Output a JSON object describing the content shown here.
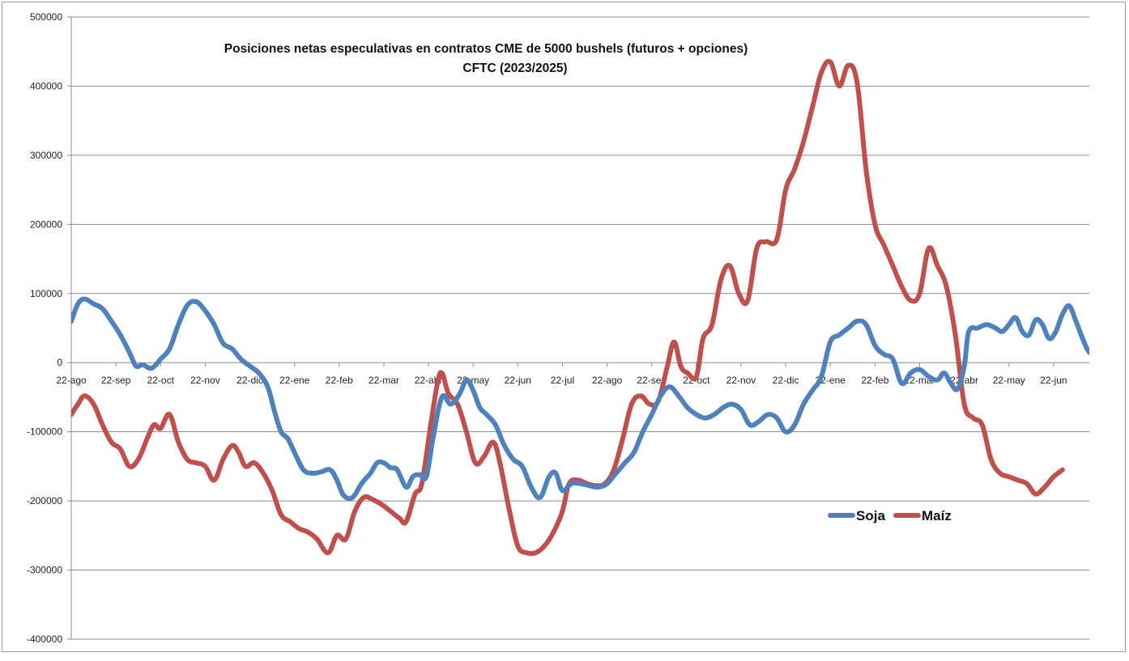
{
  "chart_data": {
    "type": "line",
    "title": "Posiciones netas especulativas en contratos CME de 5000 bushels (futuros + opciones)",
    "subtitle": "CFTC (2023/2025)",
    "xlabel": "",
    "ylabel": "",
    "ylim": [
      -400000,
      500000
    ],
    "y_ticks": [
      "500000",
      "400000",
      "300000",
      "200000",
      "100000",
      "0",
      "-100000",
      "-200000",
      "-300000",
      "-400000"
    ],
    "y_tick_values": [
      500000,
      400000,
      300000,
      200000,
      100000,
      0,
      -100000,
      -200000,
      -300000,
      -400000
    ],
    "x_tick_labels": [
      "22-ago",
      "22-sep",
      "22-oct",
      "22-nov",
      "22-dic",
      "22-ene",
      "22-feb",
      "22-mar",
      "22-abr",
      "22-may",
      "22-jun",
      "22-jul",
      "22-ago",
      "22-sep",
      "22-oct",
      "22-nov",
      "22-dic",
      "22-ene",
      "22-feb",
      "22-mar",
      "22-abr",
      "22-may",
      "22-jun"
    ],
    "x_range_months": [
      0,
      22.8
    ],
    "grid": "horizontal",
    "legend_position": "bottom-right",
    "series": [
      {
        "name": "Soja",
        "color": "#4F81BD",
        "points": [
          [
            0.0,
            60000
          ],
          [
            0.15,
            85000
          ],
          [
            0.3,
            92000
          ],
          [
            0.5,
            85000
          ],
          [
            0.7,
            78000
          ],
          [
            0.9,
            60000
          ],
          [
            1.1,
            40000
          ],
          [
            1.3,
            15000
          ],
          [
            1.45,
            -5000
          ],
          [
            1.6,
            -3000
          ],
          [
            1.8,
            -8000
          ],
          [
            2.0,
            5000
          ],
          [
            2.2,
            20000
          ],
          [
            2.4,
            55000
          ],
          [
            2.6,
            83000
          ],
          [
            2.8,
            88000
          ],
          [
            3.0,
            75000
          ],
          [
            3.2,
            55000
          ],
          [
            3.4,
            28000
          ],
          [
            3.6,
            20000
          ],
          [
            3.8,
            5000
          ],
          [
            4.0,
            -5000
          ],
          [
            4.2,
            -15000
          ],
          [
            4.4,
            -35000
          ],
          [
            4.55,
            -70000
          ],
          [
            4.7,
            -100000
          ],
          [
            4.85,
            -110000
          ],
          [
            5.0,
            -130000
          ],
          [
            5.2,
            -155000
          ],
          [
            5.4,
            -160000
          ],
          [
            5.6,
            -158000
          ],
          [
            5.8,
            -155000
          ],
          [
            5.95,
            -170000
          ],
          [
            6.1,
            -192000
          ],
          [
            6.3,
            -195000
          ],
          [
            6.5,
            -175000
          ],
          [
            6.7,
            -160000
          ],
          [
            6.85,
            -145000
          ],
          [
            7.0,
            -145000
          ],
          [
            7.15,
            -152000
          ],
          [
            7.3,
            -155000
          ],
          [
            7.5,
            -180000
          ],
          [
            7.65,
            -165000
          ],
          [
            7.8,
            -162000
          ],
          [
            7.95,
            -165000
          ],
          [
            8.1,
            -110000
          ],
          [
            8.3,
            -50000
          ],
          [
            8.5,
            -60000
          ],
          [
            8.7,
            -45000
          ],
          [
            8.85,
            -25000
          ],
          [
            9.0,
            -40000
          ],
          [
            9.15,
            -65000
          ],
          [
            9.3,
            -75000
          ],
          [
            9.5,
            -90000
          ],
          [
            9.7,
            -120000
          ],
          [
            9.9,
            -140000
          ],
          [
            10.1,
            -150000
          ],
          [
            10.3,
            -180000
          ],
          [
            10.5,
            -195000
          ],
          [
            10.7,
            -165000
          ],
          [
            10.85,
            -160000
          ],
          [
            11.0,
            -185000
          ],
          [
            11.2,
            -175000
          ],
          [
            11.4,
            -175000
          ],
          [
            11.6,
            -178000
          ],
          [
            11.8,
            -180000
          ],
          [
            12.0,
            -175000
          ],
          [
            12.2,
            -160000
          ],
          [
            12.4,
            -145000
          ],
          [
            12.6,
            -130000
          ],
          [
            12.8,
            -100000
          ],
          [
            13.0,
            -75000
          ],
          [
            13.2,
            -48000
          ],
          [
            13.4,
            -35000
          ],
          [
            13.6,
            -48000
          ],
          [
            13.8,
            -65000
          ],
          [
            14.0,
            -75000
          ],
          [
            14.2,
            -80000
          ],
          [
            14.4,
            -75000
          ],
          [
            14.6,
            -65000
          ],
          [
            14.8,
            -60000
          ],
          [
            15.0,
            -68000
          ],
          [
            15.2,
            -90000
          ],
          [
            15.4,
            -85000
          ],
          [
            15.6,
            -75000
          ],
          [
            15.8,
            -80000
          ],
          [
            16.0,
            -100000
          ],
          [
            16.2,
            -90000
          ],
          [
            16.4,
            -60000
          ],
          [
            16.6,
            -40000
          ],
          [
            16.8,
            -20000
          ],
          [
            17.0,
            30000
          ],
          [
            17.2,
            40000
          ],
          [
            17.4,
            50000
          ],
          [
            17.6,
            60000
          ],
          [
            17.8,
            55000
          ],
          [
            18.0,
            25000
          ],
          [
            18.2,
            12000
          ],
          [
            18.4,
            5000
          ],
          [
            18.6,
            -30000
          ],
          [
            18.8,
            -15000
          ],
          [
            19.0,
            -10000
          ],
          [
            19.2,
            -20000
          ],
          [
            19.4,
            -25000
          ],
          [
            19.55,
            -15000
          ],
          [
            19.7,
            -30000
          ],
          [
            19.85,
            -38000
          ],
          [
            20.0,
            -5000
          ],
          [
            20.1,
            45000
          ],
          [
            20.3,
            50000
          ],
          [
            20.5,
            55000
          ],
          [
            20.7,
            50000
          ],
          [
            20.85,
            45000
          ],
          [
            21.0,
            55000
          ],
          [
            21.15,
            65000
          ],
          [
            21.3,
            45000
          ],
          [
            21.45,
            40000
          ],
          [
            21.6,
            62000
          ],
          [
            21.75,
            55000
          ],
          [
            21.9,
            35000
          ],
          [
            22.05,
            45000
          ],
          [
            22.2,
            70000
          ],
          [
            22.35,
            82000
          ],
          [
            22.5,
            60000
          ],
          [
            22.65,
            35000
          ],
          [
            22.8,
            15000
          ],
          [
            23.0,
            12000
          ],
          [
            23.2,
            -5000
          ],
          [
            23.3,
            -20000
          ]
        ]
      },
      {
        "name": "Maíz",
        "color": "#C0504D",
        "points": [
          [
            0.0,
            -75000
          ],
          [
            0.15,
            -60000
          ],
          [
            0.3,
            -48000
          ],
          [
            0.5,
            -60000
          ],
          [
            0.7,
            -90000
          ],
          [
            0.9,
            -115000
          ],
          [
            1.1,
            -125000
          ],
          [
            1.3,
            -150000
          ],
          [
            1.5,
            -140000
          ],
          [
            1.7,
            -110000
          ],
          [
            1.85,
            -90000
          ],
          [
            2.0,
            -95000
          ],
          [
            2.2,
            -75000
          ],
          [
            2.4,
            -115000
          ],
          [
            2.6,
            -140000
          ],
          [
            2.8,
            -145000
          ],
          [
            3.0,
            -150000
          ],
          [
            3.2,
            -170000
          ],
          [
            3.4,
            -140000
          ],
          [
            3.6,
            -120000
          ],
          [
            3.75,
            -130000
          ],
          [
            3.9,
            -150000
          ],
          [
            4.1,
            -145000
          ],
          [
            4.3,
            -160000
          ],
          [
            4.5,
            -185000
          ],
          [
            4.7,
            -220000
          ],
          [
            4.9,
            -230000
          ],
          [
            5.1,
            -240000
          ],
          [
            5.3,
            -245000
          ],
          [
            5.5,
            -255000
          ],
          [
            5.75,
            -275000
          ],
          [
            5.95,
            -250000
          ],
          [
            6.15,
            -255000
          ],
          [
            6.35,
            -215000
          ],
          [
            6.55,
            -195000
          ],
          [
            6.75,
            -198000
          ],
          [
            6.95,
            -205000
          ],
          [
            7.15,
            -215000
          ],
          [
            7.35,
            -225000
          ],
          [
            7.5,
            -230000
          ],
          [
            7.7,
            -190000
          ],
          [
            7.85,
            -175000
          ],
          [
            8.05,
            -90000
          ],
          [
            8.2,
            -30000
          ],
          [
            8.3,
            -15000
          ],
          [
            8.45,
            -45000
          ],
          [
            8.65,
            -60000
          ],
          [
            8.85,
            -100000
          ],
          [
            9.05,
            -145000
          ],
          [
            9.25,
            -135000
          ],
          [
            9.45,
            -115000
          ],
          [
            9.6,
            -145000
          ],
          [
            9.8,
            -210000
          ],
          [
            10.0,
            -265000
          ],
          [
            10.2,
            -275000
          ],
          [
            10.4,
            -275000
          ],
          [
            10.6,
            -265000
          ],
          [
            10.8,
            -245000
          ],
          [
            11.0,
            -215000
          ],
          [
            11.15,
            -175000
          ],
          [
            11.35,
            -170000
          ],
          [
            11.55,
            -175000
          ],
          [
            11.75,
            -178000
          ],
          [
            11.95,
            -175000
          ],
          [
            12.15,
            -155000
          ],
          [
            12.35,
            -110000
          ],
          [
            12.55,
            -60000
          ],
          [
            12.75,
            -48000
          ],
          [
            12.95,
            -60000
          ],
          [
            13.15,
            -55000
          ],
          [
            13.35,
            -5000
          ],
          [
            13.5,
            30000
          ],
          [
            13.65,
            -5000
          ],
          [
            13.8,
            -15000
          ],
          [
            14.0,
            -20000
          ],
          [
            14.15,
            35000
          ],
          [
            14.35,
            55000
          ],
          [
            14.55,
            120000
          ],
          [
            14.75,
            140000
          ],
          [
            14.95,
            100000
          ],
          [
            15.15,
            90000
          ],
          [
            15.35,
            165000
          ],
          [
            15.55,
            175000
          ],
          [
            15.8,
            178000
          ],
          [
            16.0,
            250000
          ],
          [
            16.2,
            280000
          ],
          [
            16.4,
            320000
          ],
          [
            16.6,
            370000
          ],
          [
            16.8,
            420000
          ],
          [
            17.0,
            435000
          ],
          [
            17.2,
            400000
          ],
          [
            17.4,
            430000
          ],
          [
            17.6,
            405000
          ],
          [
            17.8,
            280000
          ],
          [
            18.0,
            200000
          ],
          [
            18.2,
            170000
          ],
          [
            18.4,
            140000
          ],
          [
            18.6,
            110000
          ],
          [
            18.8,
            90000
          ],
          [
            19.0,
            100000
          ],
          [
            19.2,
            165000
          ],
          [
            19.4,
            140000
          ],
          [
            19.6,
            110000
          ],
          [
            19.8,
            40000
          ],
          [
            20.0,
            -60000
          ],
          [
            20.2,
            -80000
          ],
          [
            20.4,
            -90000
          ],
          [
            20.6,
            -140000
          ],
          [
            20.8,
            -160000
          ],
          [
            21.0,
            -165000
          ],
          [
            21.2,
            -170000
          ],
          [
            21.4,
            -175000
          ],
          [
            21.6,
            -190000
          ],
          [
            21.8,
            -180000
          ],
          [
            22.0,
            -165000
          ],
          [
            22.2,
            -155000
          ]
        ]
      }
    ]
  }
}
